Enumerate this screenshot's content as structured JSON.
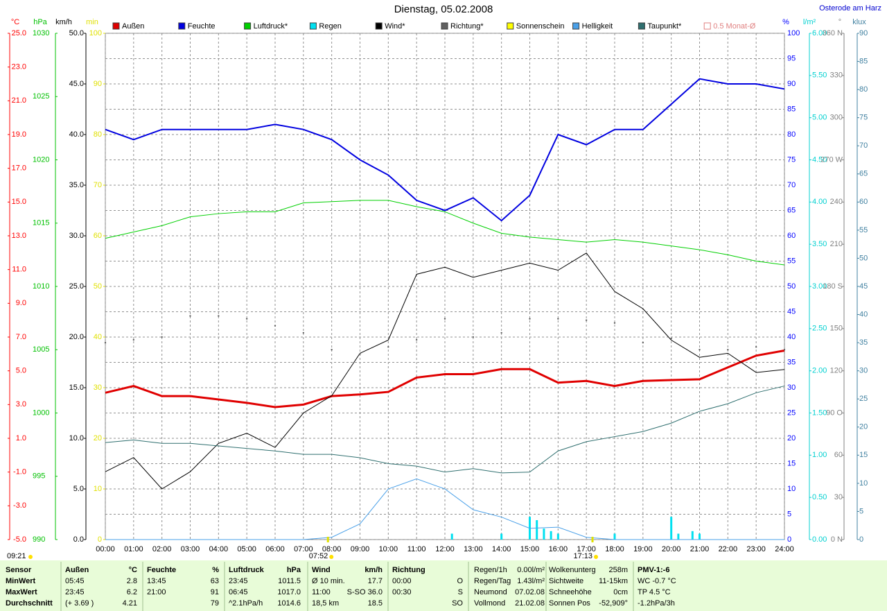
{
  "chart_data": {
    "type": "line",
    "title": "Dienstag, 05.02.2008",
    "location": "Osterode am Harz",
    "day_length": "09:21",
    "annotations": [
      {
        "x": 7.867,
        "label": "07:52"
      },
      {
        "x": 17.217,
        "label": "17:13"
      }
    ],
    "grid": true,
    "xlim": [
      0,
      24
    ],
    "xticks": [
      {
        "value": 0,
        "label": "00:00"
      },
      {
        "value": 1,
        "label": "01:00"
      },
      {
        "value": 2,
        "label": "02:00"
      },
      {
        "value": 3,
        "label": "03:00"
      },
      {
        "value": 4,
        "label": "04:00"
      },
      {
        "value": 5,
        "label": "05:00"
      },
      {
        "value": 6,
        "label": "06:00"
      },
      {
        "value": 7,
        "label": "07:00"
      },
      {
        "value": 8,
        "label": "08:00"
      },
      {
        "value": 9,
        "label": "09:00"
      },
      {
        "value": 10,
        "label": "10:00"
      },
      {
        "value": 11,
        "label": "11:00"
      },
      {
        "value": 12,
        "label": "12:00"
      },
      {
        "value": 13,
        "label": "13:00"
      },
      {
        "value": 14,
        "label": "14:00"
      },
      {
        "value": 15,
        "label": "15:00"
      },
      {
        "value": 16,
        "label": "16:00"
      },
      {
        "value": 17,
        "label": "17:00"
      },
      {
        "value": 18,
        "label": "18:00"
      },
      {
        "value": 19,
        "label": "19:00"
      },
      {
        "value": 20,
        "label": "20:00"
      },
      {
        "value": 21,
        "label": "21:00"
      },
      {
        "value": 22,
        "label": "22:00"
      },
      {
        "value": 23,
        "label": "23:00"
      },
      {
        "value": 24,
        "label": "24:00"
      }
    ],
    "x": [
      0,
      1,
      2,
      3,
      4,
      5,
      6,
      7,
      8,
      9,
      10,
      11,
      12,
      13,
      14,
      15,
      16,
      17,
      18,
      19,
      20,
      21,
      22,
      23,
      24
    ],
    "axes": [
      {
        "label": "°C",
        "color": "#ff0000",
        "lim": [
          -5,
          25
        ],
        "ticks": [
          {
            "value": -5,
            "label": "-5.0"
          },
          {
            "value": -3,
            "label": "-3.0"
          },
          {
            "value": -1,
            "label": "-1.0"
          },
          {
            "value": 1,
            "label": "1.0"
          },
          {
            "value": 3,
            "label": "3.0"
          },
          {
            "value": 5,
            "label": "5.0"
          },
          {
            "value": 7,
            "label": "7.0"
          },
          {
            "value": 9,
            "label": "9.0"
          },
          {
            "value": 11,
            "label": "11.0"
          },
          {
            "value": 13,
            "label": "13.0"
          },
          {
            "value": 15,
            "label": "15.0"
          },
          {
            "value": 17,
            "label": "17.0"
          },
          {
            "value": 19,
            "label": "19.0"
          },
          {
            "value": 21,
            "label": "21.0"
          },
          {
            "value": 23,
            "label": "23.0"
          },
          {
            "value": 25,
            "label": "25.0"
          }
        ]
      },
      {
        "label": "hPa",
        "color": "#00c000",
        "lim": [
          990,
          1030
        ],
        "ticks": [
          990,
          995,
          1000,
          1005,
          1010,
          1015,
          1020,
          1025,
          1030
        ]
      },
      {
        "label": "km/h",
        "color": "#000000",
        "lim": [
          0,
          50
        ],
        "ticks": [
          {
            "value": 0,
            "label": "0.0"
          },
          {
            "value": 5,
            "label": "5.0"
          },
          {
            "value": 10,
            "label": "10.0"
          },
          {
            "value": 15,
            "label": "15.0"
          },
          {
            "value": 20,
            "label": "20.0"
          },
          {
            "value": 25,
            "label": "25.0"
          },
          {
            "value": 30,
            "label": "30.0"
          },
          {
            "value": 35,
            "label": "35.0"
          },
          {
            "value": 40,
            "label": "40.0"
          },
          {
            "value": 45,
            "label": "45.0"
          },
          {
            "value": 50,
            "label": "50.0"
          }
        ]
      },
      {
        "label": "min",
        "color": "#e0e000",
        "lim": [
          0,
          100
        ],
        "ticks": [
          0,
          10,
          20,
          30,
          40,
          50,
          60,
          70,
          80,
          90,
          100
        ]
      },
      {
        "label": "%",
        "color": "#0000ff",
        "lim": [
          0,
          100
        ],
        "ticks": [
          0,
          5,
          10,
          15,
          20,
          25,
          30,
          35,
          40,
          45,
          50,
          55,
          60,
          65,
          70,
          75,
          80,
          85,
          90,
          95,
          100
        ]
      },
      {
        "label": "l/m²",
        "color": "#00d0d0",
        "lim": [
          0,
          6
        ],
        "ticks": [
          {
            "value": 0,
            "label": "0.00"
          },
          {
            "value": 0.5,
            "label": "0.50"
          },
          {
            "value": 1,
            "label": "1.00"
          },
          {
            "value": 1.5,
            "label": "1.50"
          },
          {
            "value": 2,
            "label": "2.00"
          },
          {
            "value": 2.5,
            "label": "2.50"
          },
          {
            "value": 3,
            "label": "3.00"
          },
          {
            "value": 3.5,
            "label": "3.50"
          },
          {
            "value": 4,
            "label": "4.00"
          },
          {
            "value": 4.5,
            "label": "4.50"
          },
          {
            "value": 5,
            "label": "5.00"
          },
          {
            "value": 5.5,
            "label": "5.50"
          },
          {
            "value": 6,
            "label": "6.00"
          }
        ]
      },
      {
        "label": "°",
        "color": "#808080",
        "lim": [
          0,
          360
        ],
        "ticks": [
          {
            "value": 0,
            "label": "0 N"
          },
          30,
          60,
          {
            "value": 90,
            "label": "90 O"
          },
          120,
          150,
          {
            "value": 180,
            "label": "180 S"
          },
          210,
          240,
          {
            "value": 270,
            "label": "270 W"
          },
          300,
          330,
          {
            "value": 360,
            "label": "360 N"
          }
        ]
      },
      {
        "label": "klux",
        "color": "#4080a0",
        "lim": [
          0,
          90
        ],
        "ticks": [
          0,
          5,
          10,
          15,
          20,
          25,
          30,
          35,
          40,
          45,
          50,
          55,
          60,
          65,
          70,
          75,
          80,
          85,
          90
        ]
      }
    ],
    "series": [
      {
        "name": "Außen",
        "color": "#e00000",
        "axis": 0,
        "style": "line",
        "width": 3,
        "values": [
          3.7,
          4.1,
          3.5,
          3.5,
          3.3,
          3.1,
          2.85,
          3.0,
          3.5,
          3.6,
          3.75,
          4.6,
          4.8,
          4.8,
          5.1,
          5.1,
          4.3,
          4.4,
          4.1,
          4.4,
          4.45,
          4.5,
          5.2,
          5.9,
          6.2
        ]
      },
      {
        "name": "Feuchte",
        "color": "#0000e0",
        "axis": 4,
        "style": "line",
        "width": 2,
        "values": [
          81,
          79,
          81,
          81,
          81,
          81,
          82,
          81,
          79,
          75,
          72,
          67,
          65,
          67.5,
          63,
          68,
          80,
          78,
          81,
          81,
          86,
          91,
          90,
          90,
          89
        ]
      },
      {
        "name": "Luftdruck*",
        "color": "#00d000",
        "axis": 1,
        "style": "line",
        "width": 1,
        "values": [
          1013.8,
          1014.3,
          1014.8,
          1015.5,
          1015.75,
          1015.9,
          1015.9,
          1016.6,
          1016.7,
          1016.8,
          1016.8,
          1016.3,
          1015.9,
          1015.0,
          1014.2,
          1013.9,
          1013.7,
          1013.5,
          1013.7,
          1013.5,
          1013.2,
          1012.9,
          1012.5,
          1012.0,
          1011.7
        ]
      },
      {
        "name": "Regen",
        "color": "#00e0f0",
        "axis": 5,
        "style": "bars",
        "x": [
          12.25,
          14,
          15,
          15.25,
          15.5,
          15.75,
          16,
          18,
          20,
          20.25,
          20.75,
          21
        ],
        "values": [
          0.07,
          0.07,
          0.27,
          0.23,
          0.13,
          0.1,
          0.07,
          0.07,
          0.27,
          0.07,
          0.1,
          0.07
        ]
      },
      {
        "name": "Wind*",
        "color": "#000000",
        "axis": 2,
        "style": "line",
        "width": 1,
        "values": [
          6.7,
          8.1,
          5.0,
          6.7,
          9.5,
          10.5,
          9.1,
          12.5,
          14.2,
          18.4,
          19.7,
          26.2,
          26.9,
          25.9,
          26.6,
          27.3,
          26.6,
          28.3,
          24.5,
          22.8,
          19.7,
          18.0,
          18.4,
          16.5,
          16.8
        ]
      },
      {
        "name": "Richtung*",
        "color": "#606060",
        "axis": 6,
        "style": "dots",
        "values": [
          140,
          142,
          144,
          159,
          159,
          157,
          152,
          147,
          135,
          132,
          137,
          142,
          157,
          144,
          147,
          157,
          157,
          156,
          154,
          140,
          143,
          135,
          135,
          137,
          135
        ]
      },
      {
        "name": "Sonnenschein",
        "color": "#ffff00"
      },
      {
        "name": "Helligkeit",
        "color": "#4aa0e8",
        "axis": 7,
        "style": "line",
        "width": 1,
        "values": [
          0,
          0,
          0,
          0,
          0,
          0,
          0,
          0,
          0.4,
          2.8,
          9,
          10.8,
          9,
          5.3,
          4,
          2,
          2.2,
          0.4,
          0,
          0,
          0,
          0,
          0,
          0,
          0
        ]
      },
      {
        "name": "Taupunkt*",
        "color": "#2f6f6f",
        "axis": 0,
        "style": "line",
        "width": 1,
        "values": [
          0.75,
          0.9,
          0.7,
          0.7,
          0.55,
          0.4,
          0.25,
          0.05,
          0.05,
          -0.15,
          -0.5,
          -0.65,
          -1.0,
          -0.8,
          -1.05,
          -1.0,
          0.25,
          0.8,
          1.1,
          1.4,
          1.9,
          2.6,
          3.05,
          3.7,
          4.1
        ]
      },
      {
        "name": "0.5 Monat-Ø",
        "color": "#e08080",
        "swatch": "hollow"
      }
    ]
  },
  "table": {
    "rows": [
      [
        "Sensor",
        "Außen",
        "°C",
        "Feuchte",
        "%",
        "Luftdruck",
        "hPa",
        "Wind",
        "km/h",
        "Richtung",
        null,
        "Regen/1h",
        "0.00l/m²",
        "Wolkenunterg",
        "258m",
        "PMV-1:-6"
      ],
      [
        "MinWert",
        "05:45",
        "2.8",
        "13:45",
        "63",
        "23:45",
        "1011.5",
        "Ø 10 min.",
        "17.7",
        "00:00",
        "O",
        "Regen/Tag",
        "1.43l/m²",
        "Sichtweite",
        "11-15km",
        "WC -0.7 °C"
      ],
      [
        "MaxWert",
        "23:45",
        "6.2",
        "21:00",
        "91",
        "06:45",
        "1017.0",
        "11:00",
        "S-SO 36.0",
        "00:30",
        "S",
        "Neumond",
        "07.02.08",
        "Schneehöhe",
        "0cm",
        "TP 4.5 °C"
      ],
      [
        "Durchschnitt",
        "(+ 3.69 )",
        "4.21",
        null,
        "79",
        "^2.1hPa/h",
        "1014.6",
        "18,5 km",
        "18.5",
        null,
        "SO",
        "Vollmond",
        "21.02.08",
        "Sonnen Pos",
        "-52,909°",
        "-1.2hPa/3h"
      ]
    ]
  }
}
